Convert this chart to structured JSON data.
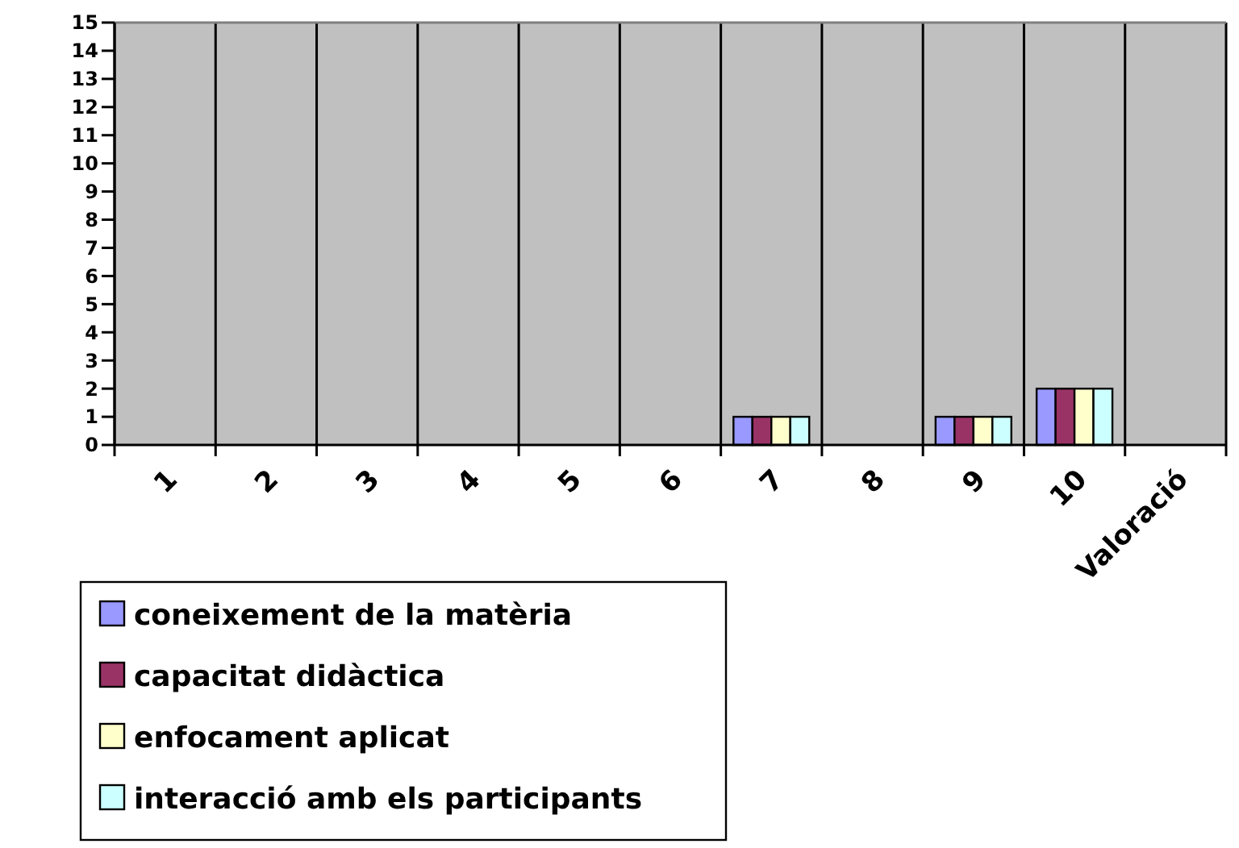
{
  "chart_data": {
    "type": "bar",
    "categories": [
      "1",
      "2",
      "3",
      "4",
      "5",
      "6",
      "7",
      "8",
      "9",
      "10",
      "Valoració"
    ],
    "series": [
      {
        "name": "coneixement de la matèria",
        "color": "#9999ff",
        "values": [
          null,
          null,
          null,
          null,
          null,
          null,
          1,
          null,
          1,
          2,
          null
        ]
      },
      {
        "name": "capacitat didàctica",
        "color": "#993366",
        "values": [
          null,
          null,
          null,
          null,
          null,
          null,
          1,
          null,
          1,
          2,
          null
        ]
      },
      {
        "name": "enfocament aplicat",
        "color": "#ffffcc",
        "values": [
          null,
          null,
          null,
          null,
          null,
          null,
          1,
          null,
          1,
          2,
          null
        ]
      },
      {
        "name": "interacció amb els participants",
        "color": "#ccffff",
        "values": [
          null,
          null,
          null,
          null,
          null,
          null,
          1,
          null,
          1,
          2,
          null
        ]
      }
    ],
    "ylim": [
      0,
      15
    ],
    "yticks": [
      0,
      1,
      2,
      3,
      4,
      5,
      6,
      7,
      8,
      9,
      10,
      11,
      12,
      13,
      14,
      15
    ],
    "grid": "x",
    "legend": "bottom left"
  }
}
